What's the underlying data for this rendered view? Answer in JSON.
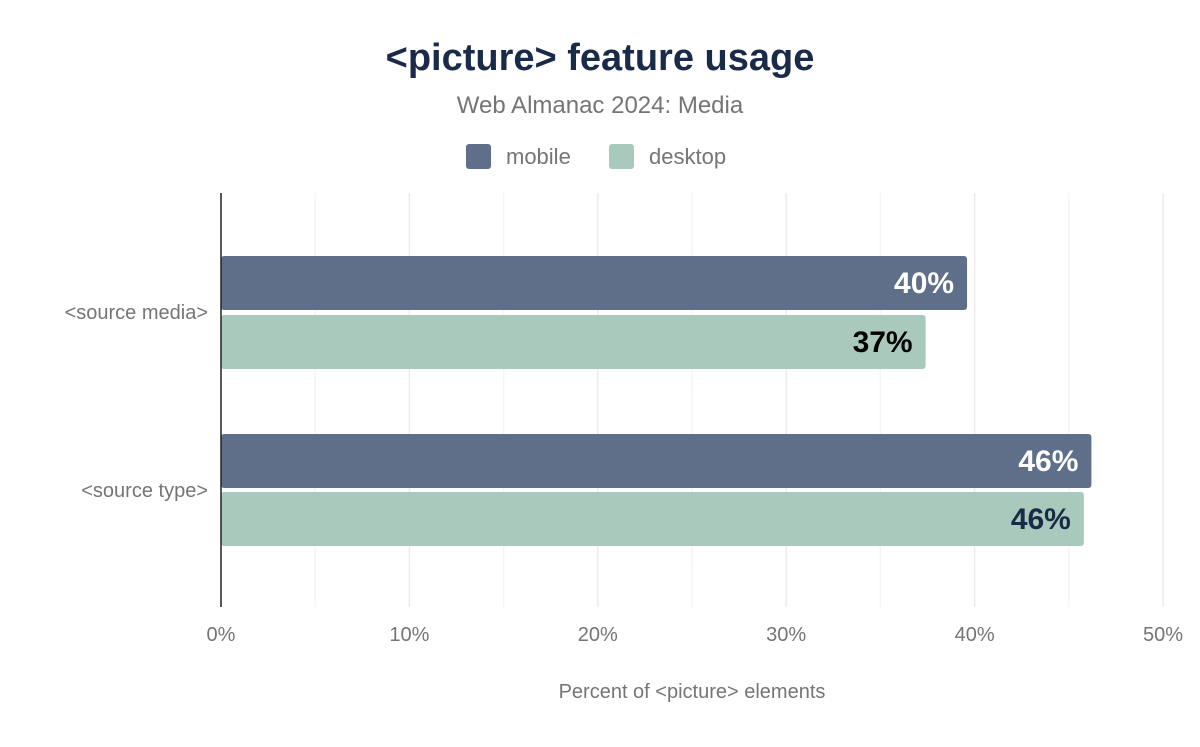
{
  "chart_data": {
    "type": "bar",
    "orientation": "horizontal",
    "title": "<picture> feature usage",
    "subtitle": "Web Almanac 2024: Media",
    "xlabel": "Percent of <picture> elements",
    "ylabel": "",
    "categories": [
      "<source media>",
      "<source type>"
    ],
    "series": [
      {
        "name": "mobile",
        "color": "#5f6f8a",
        "values": [
          39.6,
          46.2
        ],
        "labels": [
          "40%",
          "46%"
        ],
        "label_color": "#ffffff"
      },
      {
        "name": "desktop",
        "color": "#a8c9bb",
        "values": [
          37.4,
          45.8
        ],
        "labels": [
          "37%",
          "46%"
        ],
        "label_colors": [
          "#000000",
          "#1a2b49"
        ]
      }
    ],
    "xlim": [
      0,
      50
    ],
    "xticks": [
      "0%",
      "10%",
      "20%",
      "30%",
      "40%",
      "50%"
    ],
    "grid": true,
    "legend": "top-center"
  }
}
